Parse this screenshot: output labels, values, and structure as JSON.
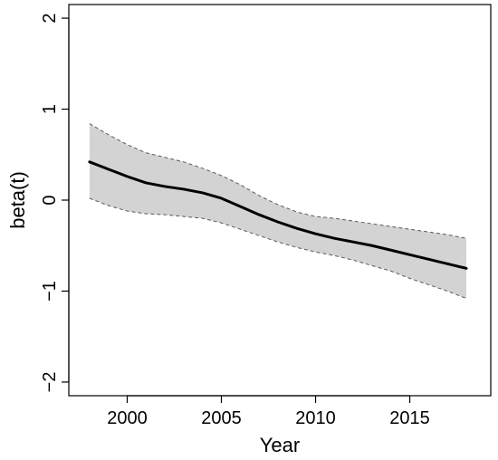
{
  "chart_data": {
    "type": "line",
    "xlabel": "Year",
    "ylabel": "beta(t)",
    "xlim": [
      1996.9,
      2019.3
    ],
    "ylim": [
      -2.15,
      2.15
    ],
    "x_ticks": [
      {
        "value": 2000,
        "label": "2000"
      },
      {
        "value": 2005,
        "label": "2005"
      },
      {
        "value": 2010,
        "label": "2010"
      },
      {
        "value": 2015,
        "label": "2015"
      }
    ],
    "y_ticks": [
      {
        "value": -2,
        "label": "−2"
      },
      {
        "value": -1,
        "label": "−1"
      },
      {
        "value": 0,
        "label": "0"
      },
      {
        "value": 1,
        "label": "1"
      },
      {
        "value": 2,
        "label": "2"
      }
    ],
    "grid": false,
    "x": [
      1998,
      1999,
      2000,
      2001,
      2002,
      2003,
      2004,
      2005,
      2006,
      2007,
      2008,
      2009,
      2010,
      2011,
      2012,
      2013,
      2014,
      2015,
      2016,
      2017,
      2018
    ],
    "series": [
      {
        "role": "estimate",
        "values": [
          0.42,
          0.34,
          0.26,
          0.19,
          0.15,
          0.12,
          0.08,
          0.02,
          -0.07,
          -0.16,
          -0.24,
          -0.31,
          -0.37,
          -0.42,
          -0.46,
          -0.5,
          -0.55,
          -0.6,
          -0.65,
          -0.7,
          -0.75
        ]
      },
      {
        "role": "upper_band",
        "values": [
          0.84,
          0.72,
          0.61,
          0.52,
          0.47,
          0.42,
          0.35,
          0.27,
          0.17,
          0.05,
          -0.05,
          -0.13,
          -0.18,
          -0.2,
          -0.23,
          -0.26,
          -0.29,
          -0.32,
          -0.35,
          -0.38,
          -0.42
        ]
      },
      {
        "role": "lower_band",
        "values": [
          0.02,
          -0.06,
          -0.12,
          -0.15,
          -0.16,
          -0.18,
          -0.2,
          -0.25,
          -0.32,
          -0.39,
          -0.46,
          -0.52,
          -0.57,
          -0.61,
          -0.66,
          -0.72,
          -0.78,
          -0.86,
          -0.93,
          -1.0,
          -1.08
        ]
      }
    ],
    "colors": {
      "line": "#000000",
      "band_fill": "#d3d3d3",
      "band_edge": "#5a5a5a",
      "frame": "#000000",
      "background": "#ffffff"
    }
  }
}
